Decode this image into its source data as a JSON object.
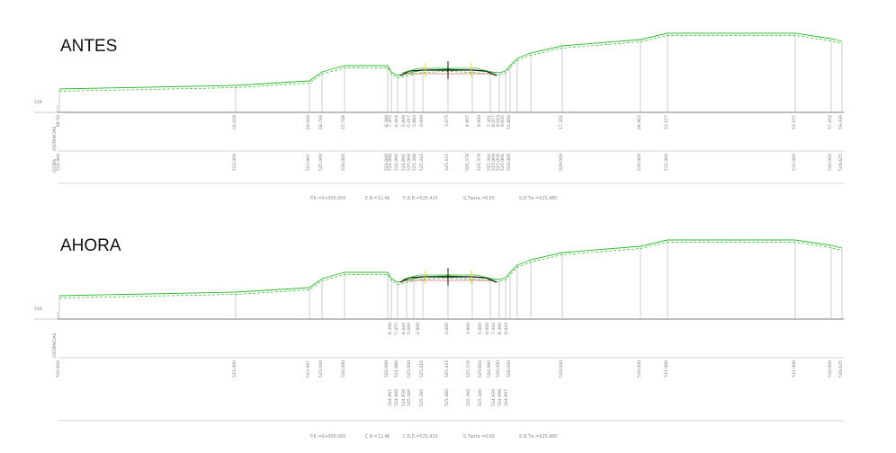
{
  "colors": {
    "terrain": "#2db82d",
    "road": "#1a1a1a",
    "marker": "#e6d400",
    "accent": "#d03030",
    "lines": "#9a9a9a"
  },
  "sections": [
    {
      "id": "antes",
      "title": "ANTES",
      "level_label": "519",
      "row_labels": [
        "DISTANCIAS",
        "COTAS"
      ],
      "distances": [
        "-48.50",
        "-32.026",
        "-20.926",
        "-18.726",
        "-15.768",
        "-8.390",
        "-7.455",
        "-6.444",
        "-5.600",
        "-5.017",
        "-3.883",
        "0.000",
        "3.475",
        "4.957",
        "6.000",
        "7.361",
        "8.077",
        "9.010",
        "9.835",
        "11.868",
        "17.201",
        "28.962",
        "33.157",
        "52.157",
        "57.452",
        "59.336"
      ],
      "elevations": [
        "522.946",
        "523.000",
        "523.997",
        "525.000",
        "526.000",
        "526.000",
        "524.996",
        "524.994",
        "524.891",
        "525.000",
        "525.388",
        "525.416",
        "525.433",
        "525.378",
        "525.379",
        "525.364",
        "525.069",
        "525.056",
        "525.006",
        "526.000",
        "529.000",
        "530.000",
        "531.000",
        "531.000",
        "530.000",
        "529.625"
      ],
      "footer": [
        "P.K.=0+000,000",
        "C.R.=11,46",
        "C.R.D.=525,410",
        "S.Tierra.=0,00",
        "S.D.Tie.=525,480"
      ]
    },
    {
      "id": "ahora",
      "title": "AHORA",
      "level_label": "519",
      "row_labels": [
        "DISTANCIAS"
      ],
      "distances": [
        "-8.390",
        "-7.455",
        "-6.444",
        "-5.600",
        "-3.900",
        "0.000",
        "3.900",
        "5.600",
        "6.000",
        "7.444",
        "8.390",
        "9.010"
      ],
      "elevations": [
        "522.946",
        "523.000",
        "523.997",
        "525.000",
        "526.000",
        "526.000",
        "524.996",
        "525.000",
        "525.410",
        "525.433",
        "525.378",
        "525.064",
        "524.996",
        "526.000",
        "528.000",
        "529.000",
        "530.000",
        "531.000",
        "531.000",
        "530.000",
        "529.625"
      ],
      "extra": [
        "524.997",
        "524.996",
        "524.930",
        "525.300",
        "525.390",
        "525.480",
        "525.390",
        "525.300",
        "524.930",
        "524.996",
        "524.997"
      ],
      "footer": [
        "P.K.=0+000,000",
        "C.R.=11,46",
        "C.R.D.=525,410",
        "S.Tierra.=0,00",
        "S.D.Tie.=525,480"
      ]
    }
  ]
}
